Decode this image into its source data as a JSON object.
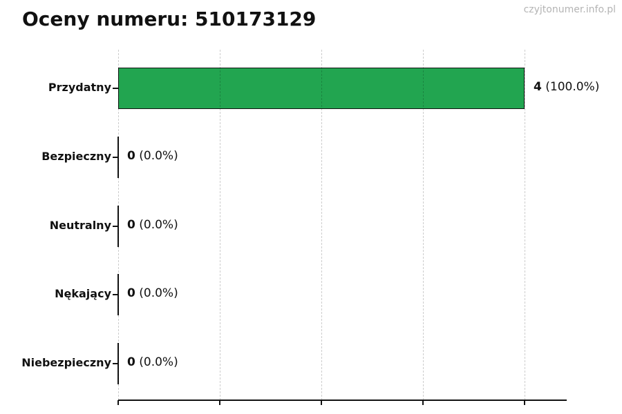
{
  "page": {
    "title": "Oceny numeru: 510173129",
    "watermark": "czyjtonumer.info.pl"
  },
  "chart_data": {
    "type": "bar",
    "orientation": "horizontal",
    "title": "Oceny numeru: 510173129",
    "categories": [
      "Przydatny",
      "Bezpieczny",
      "Neutralny",
      "Nękający",
      "Niebezpieczny"
    ],
    "values": [
      4,
      0,
      0,
      0,
      0
    ],
    "percent_labels": [
      "100.0%",
      "0.0%",
      "0.0%",
      "0.0%",
      "0.0%"
    ],
    "value_label_format": "count (percent)",
    "xlim": [
      0,
      4
    ],
    "grid": "vertical-dashed",
    "legend": "none",
    "bar_color": "#22a550",
    "bar_edge_color": "#111111",
    "grid_color": "#cccccc",
    "watermark_color": "#b4b4b4"
  }
}
